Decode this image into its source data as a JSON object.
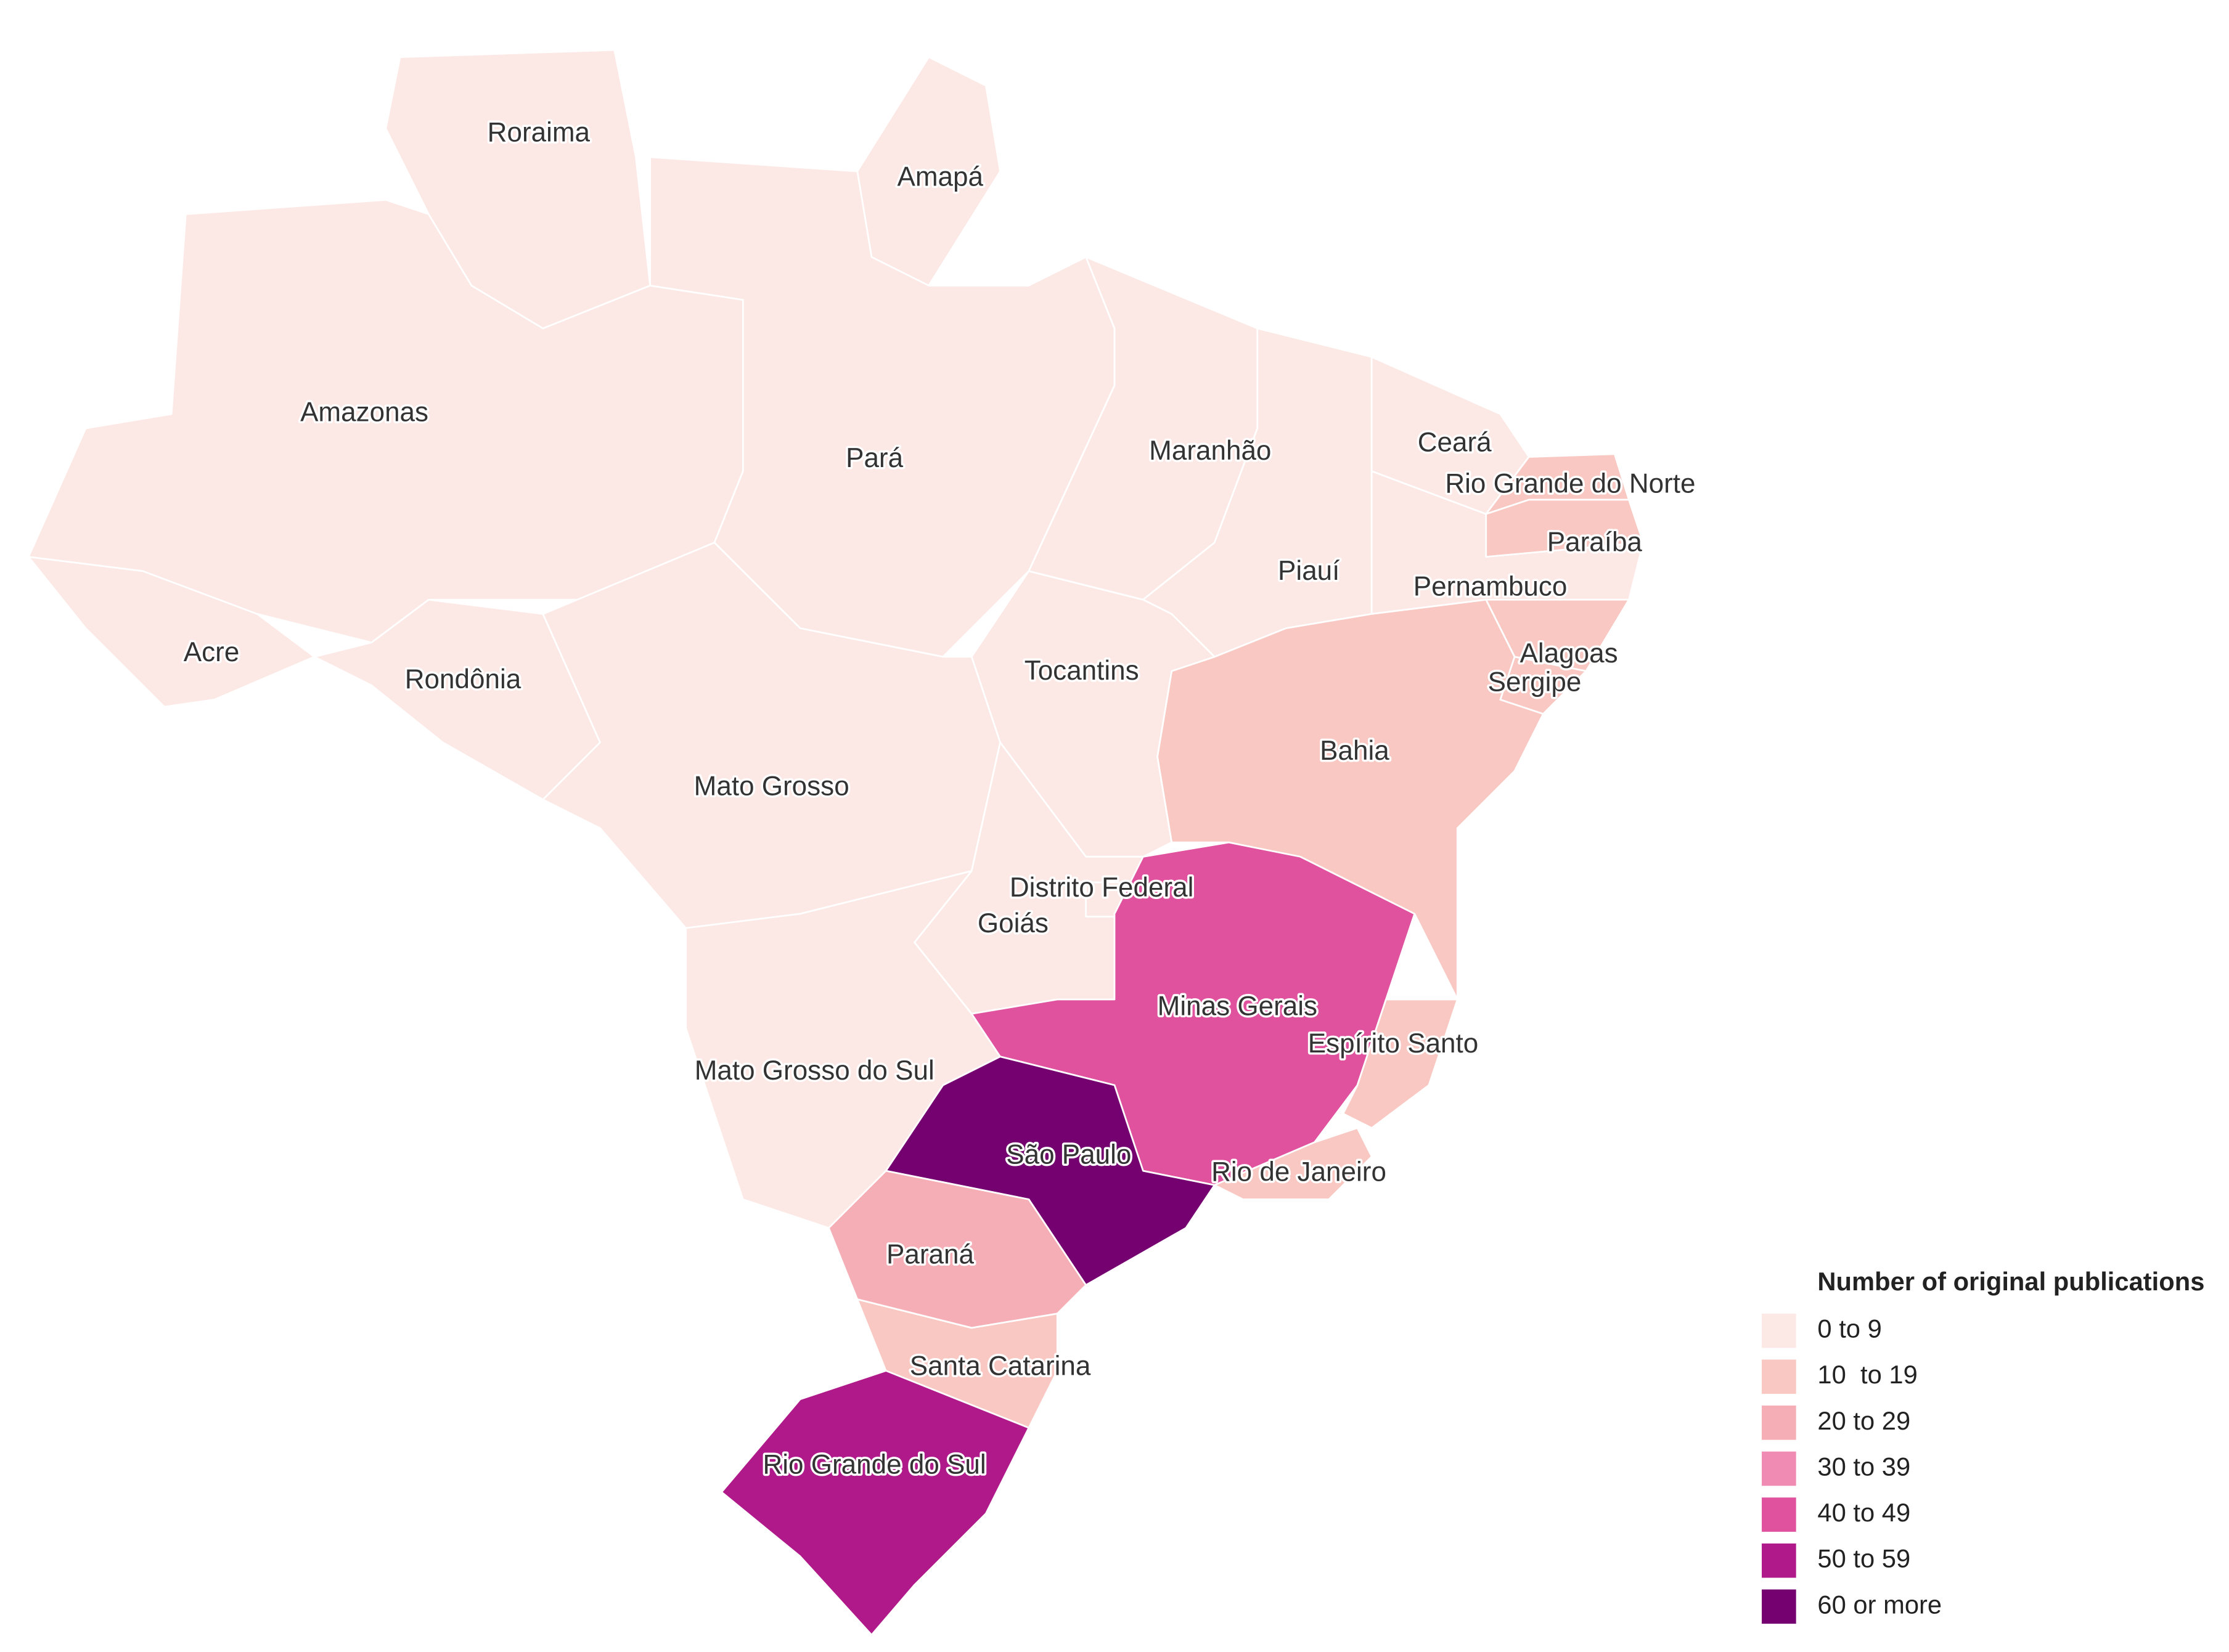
{
  "legend": {
    "title": "Number of original publications",
    "items": [
      {
        "label": "0 to 9",
        "color": "#fce8e4"
      },
      {
        "label": "10  to 19",
        "color": "#f9c8c2"
      },
      {
        "label": "20 to 29",
        "color": "#f6aeb6"
      },
      {
        "label": "30 to 39",
        "color": "#f08bb3"
      },
      {
        "label": "40 to 49",
        "color": "#e0519e"
      },
      {
        "label": "50 to 59",
        "color": "#b0198a"
      },
      {
        "label": "60 or more",
        "color": "#750070"
      }
    ]
  },
  "states": [
    {
      "name": "Amazonas",
      "color": "#fce8e4"
    },
    {
      "name": "Acre",
      "color": "#fce8e4"
    },
    {
      "name": "Rondônia",
      "color": "#fce8e4"
    },
    {
      "name": "Roraima",
      "color": "#fce8e4"
    },
    {
      "name": "Amapá",
      "color": "#fce8e4"
    },
    {
      "name": "Pará",
      "color": "#fce8e4"
    },
    {
      "name": "Maranhão",
      "color": "#fce8e4"
    },
    {
      "name": "Piauí",
      "color": "#fce8e4"
    },
    {
      "name": "Ceará",
      "color": "#fce8e4"
    },
    {
      "name": "Rio Grande do Norte",
      "color": "#f9c8c2"
    },
    {
      "name": "Paraíba",
      "color": "#f9c8c2"
    },
    {
      "name": "Pernambuco",
      "color": "#fce8e4"
    },
    {
      "name": "Alagoas",
      "color": "#f9c8c2"
    },
    {
      "name": "Sergipe",
      "color": "#f9c8c2"
    },
    {
      "name": "Bahia",
      "color": "#f9c8c2"
    },
    {
      "name": "Tocantins",
      "color": "#fce8e4"
    },
    {
      "name": "Mato Grosso",
      "color": "#fce8e4"
    },
    {
      "name": "Goiás",
      "color": "#fce8e4"
    },
    {
      "name": "Distrito Federal",
      "color": "#fce8e4"
    },
    {
      "name": "Mato Grosso do Sul",
      "color": "#fce8e4"
    },
    {
      "name": "Minas Gerais",
      "color": "#e0519e"
    },
    {
      "name": "Espírito Santo",
      "color": "#f9c8c2"
    },
    {
      "name": "Rio de Janeiro",
      "color": "#f9c8c2"
    },
    {
      "name": "São Paulo",
      "color": "#750070"
    },
    {
      "name": "Paraná",
      "color": "#f6aeb6"
    },
    {
      "name": "Santa Catarina",
      "color": "#f9c8c2"
    },
    {
      "name": "Rio Grande do Sul",
      "color": "#b0198a"
    }
  ]
}
